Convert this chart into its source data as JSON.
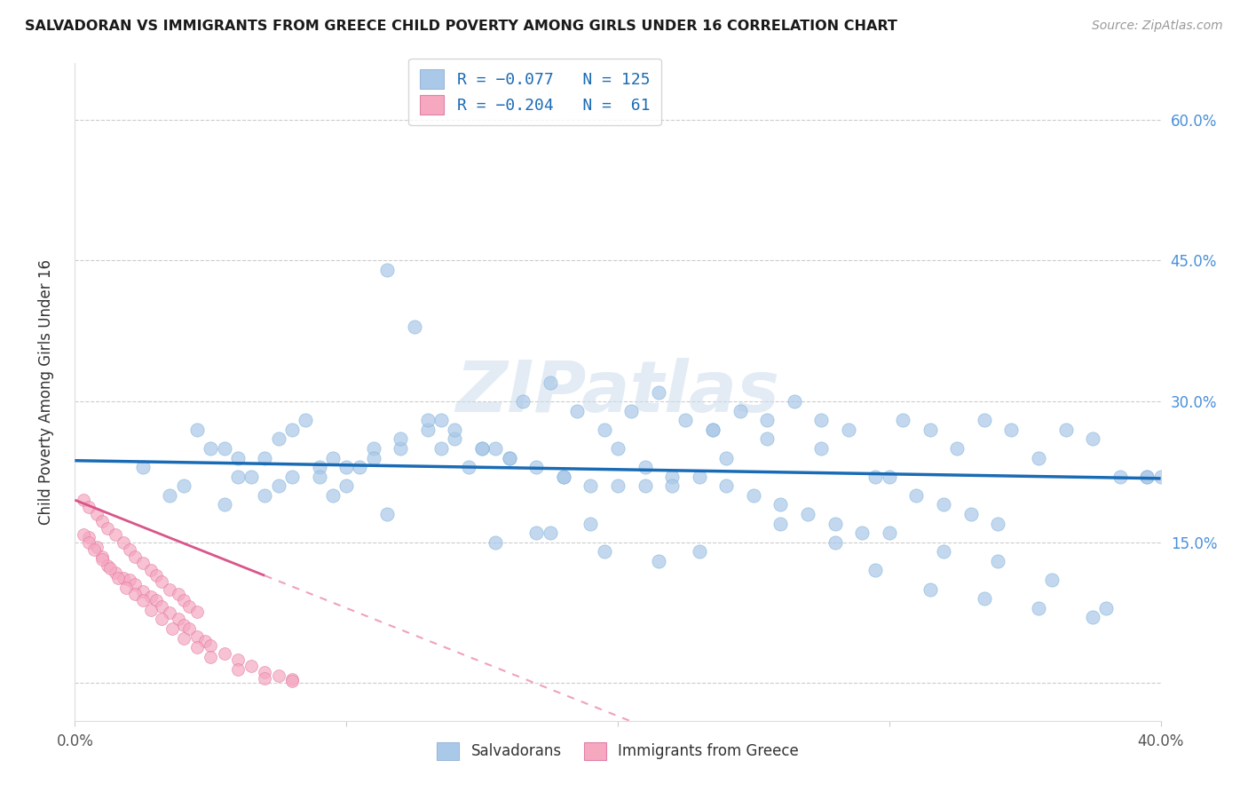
{
  "title": "SALVADORAN VS IMMIGRANTS FROM GREECE CHILD POVERTY AMONG GIRLS UNDER 16 CORRELATION CHART",
  "source": "Source: ZipAtlas.com",
  "ylabel": "Child Poverty Among Girls Under 16",
  "xmin": 0.0,
  "xmax": 0.4,
  "ymin": -0.04,
  "ymax": 0.66,
  "blue_color": "#aac8e8",
  "pink_color": "#f5a8c0",
  "blue_line_color": "#1a6bb5",
  "pink_line_solid_color": "#d9558a",
  "pink_line_dash_color": "#f0a0c0",
  "watermark": "ZIPatlas",
  "blue_trend_x0": 0.0,
  "blue_trend_x1": 0.4,
  "blue_trend_y0": 0.237,
  "blue_trend_y1": 0.218,
  "pink_trend_solid_x0": 0.0,
  "pink_trend_solid_x1": 0.07,
  "pink_trend_y0": 0.195,
  "pink_trend_slope": -1.15,
  "pink_trend_dash_x1": 0.4,
  "right_ytick_color": "#4a90d9",
  "blue_scatter": {
    "x": [
      0.025,
      0.045,
      0.055,
      0.065,
      0.075,
      0.085,
      0.095,
      0.105,
      0.115,
      0.125,
      0.135,
      0.145,
      0.155,
      0.165,
      0.175,
      0.185,
      0.195,
      0.205,
      0.215,
      0.225,
      0.235,
      0.245,
      0.255,
      0.265,
      0.275,
      0.285,
      0.295,
      0.305,
      0.315,
      0.325,
      0.335,
      0.345,
      0.355,
      0.365,
      0.375,
      0.385,
      0.395,
      0.04,
      0.06,
      0.07,
      0.08,
      0.09,
      0.1,
      0.11,
      0.12,
      0.13,
      0.14,
      0.15,
      0.16,
      0.17,
      0.18,
      0.19,
      0.2,
      0.21,
      0.22,
      0.23,
      0.24,
      0.25,
      0.26,
      0.27,
      0.28,
      0.29,
      0.3,
      0.31,
      0.32,
      0.33,
      0.34,
      0.05,
      0.07,
      0.09,
      0.11,
      0.13,
      0.15,
      0.17,
      0.19,
      0.21,
      0.23,
      0.06,
      0.08,
      0.1,
      0.12,
      0.14,
      0.16,
      0.18,
      0.2,
      0.22,
      0.24,
      0.26,
      0.28,
      0.3,
      0.32,
      0.34,
      0.36,
      0.38,
      0.4,
      0.035,
      0.055,
      0.075,
      0.095,
      0.115,
      0.135,
      0.155,
      0.175,
      0.195,
      0.215,
      0.235,
      0.255,
      0.275,
      0.295,
      0.315,
      0.335,
      0.355,
      0.375,
      0.395
    ],
    "y": [
      0.23,
      0.27,
      0.25,
      0.22,
      0.26,
      0.28,
      0.24,
      0.23,
      0.44,
      0.38,
      0.25,
      0.23,
      0.25,
      0.3,
      0.32,
      0.29,
      0.27,
      0.29,
      0.31,
      0.28,
      0.27,
      0.29,
      0.28,
      0.3,
      0.28,
      0.27,
      0.22,
      0.28,
      0.27,
      0.25,
      0.28,
      0.27,
      0.24,
      0.27,
      0.26,
      0.22,
      0.22,
      0.21,
      0.22,
      0.2,
      0.22,
      0.23,
      0.21,
      0.25,
      0.25,
      0.27,
      0.26,
      0.25,
      0.24,
      0.23,
      0.22,
      0.21,
      0.25,
      0.23,
      0.22,
      0.22,
      0.21,
      0.2,
      0.19,
      0.18,
      0.17,
      0.16,
      0.22,
      0.2,
      0.19,
      0.18,
      0.17,
      0.25,
      0.24,
      0.22,
      0.24,
      0.28,
      0.25,
      0.16,
      0.17,
      0.21,
      0.14,
      0.24,
      0.27,
      0.23,
      0.26,
      0.27,
      0.24,
      0.22,
      0.21,
      0.21,
      0.24,
      0.17,
      0.15,
      0.16,
      0.14,
      0.13,
      0.11,
      0.08,
      0.22,
      0.2,
      0.19,
      0.21,
      0.2,
      0.18,
      0.28,
      0.15,
      0.16,
      0.14,
      0.13,
      0.27,
      0.26,
      0.25,
      0.12,
      0.1,
      0.09,
      0.08,
      0.07,
      0.22
    ]
  },
  "pink_scatter": {
    "x": [
      0.005,
      0.008,
      0.01,
      0.012,
      0.015,
      0.018,
      0.02,
      0.022,
      0.025,
      0.028,
      0.03,
      0.032,
      0.035,
      0.038,
      0.04,
      0.042,
      0.045,
      0.048,
      0.05,
      0.055,
      0.06,
      0.065,
      0.07,
      0.075,
      0.08,
      0.003,
      0.005,
      0.008,
      0.01,
      0.012,
      0.015,
      0.018,
      0.02,
      0.022,
      0.025,
      0.028,
      0.03,
      0.032,
      0.035,
      0.038,
      0.04,
      0.042,
      0.045,
      0.003,
      0.005,
      0.007,
      0.01,
      0.013,
      0.016,
      0.019,
      0.022,
      0.025,
      0.028,
      0.032,
      0.036,
      0.04,
      0.045,
      0.05,
      0.06,
      0.07,
      0.08
    ],
    "y": [
      0.155,
      0.145,
      0.135,
      0.125,
      0.118,
      0.112,
      0.11,
      0.105,
      0.098,
      0.092,
      0.088,
      0.082,
      0.075,
      0.068,
      0.062,
      0.058,
      0.05,
      0.045,
      0.04,
      0.032,
      0.025,
      0.018,
      0.012,
      0.008,
      0.004,
      0.195,
      0.188,
      0.18,
      0.172,
      0.165,
      0.158,
      0.15,
      0.142,
      0.135,
      0.128,
      0.12,
      0.115,
      0.108,
      0.1,
      0.095,
      0.088,
      0.082,
      0.076,
      0.158,
      0.15,
      0.142,
      0.132,
      0.122,
      0.112,
      0.102,
      0.095,
      0.088,
      0.078,
      0.068,
      0.058,
      0.048,
      0.038,
      0.028,
      0.015,
      0.005,
      0.002
    ]
  }
}
